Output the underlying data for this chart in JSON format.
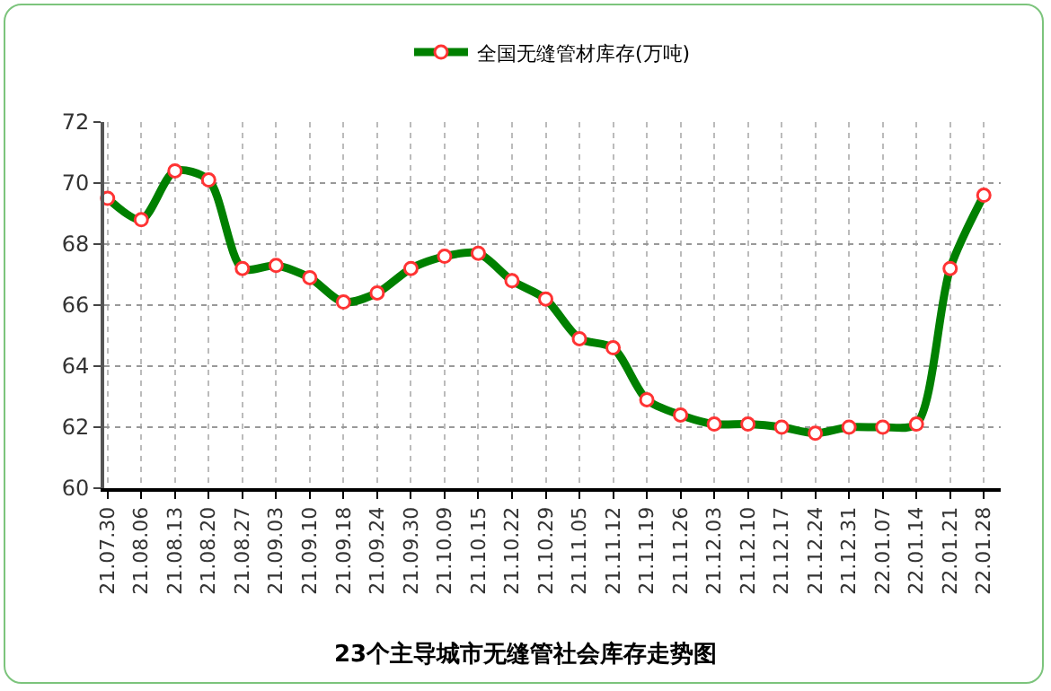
{
  "chart_data": {
    "type": "line",
    "title": "23个主导城市无缝管社会库存走势图",
    "categories": [
      "21.07.30",
      "21.08.06",
      "21.08.13",
      "21.08.20",
      "21.08.27",
      "21.09.03",
      "21.09.10",
      "21.09.18",
      "21.09.24",
      "21.09.30",
      "21.10.09",
      "21.10.15",
      "21.10.22",
      "21.10.29",
      "21.11.05",
      "21.11.12",
      "21.11.19",
      "21.11.26",
      "21.12.03",
      "21.12.10",
      "21.12.17",
      "21.12.24",
      "21.12.31",
      "22.01.07",
      "22.01.14",
      "22.01.21",
      "22.01.28"
    ],
    "series": [
      {
        "name": "全国无缝管材库存(万吨)",
        "color": "#008000",
        "values": [
          69.5,
          68.8,
          70.4,
          70.1,
          67.2,
          67.3,
          66.9,
          66.1,
          66.4,
          67.2,
          67.6,
          67.7,
          66.8,
          66.2,
          64.9,
          64.6,
          62.9,
          62.4,
          62.1,
          62.1,
          62.0,
          61.8,
          62.0,
          62.0,
          62.1,
          67.2,
          69.6
        ]
      }
    ],
    "ylim": [
      60,
      72
    ],
    "yticks": [
      60,
      62,
      64,
      66,
      68,
      70,
      72
    ],
    "grid": true,
    "legend": "top",
    "marker": "circle",
    "line_style": "solid"
  }
}
